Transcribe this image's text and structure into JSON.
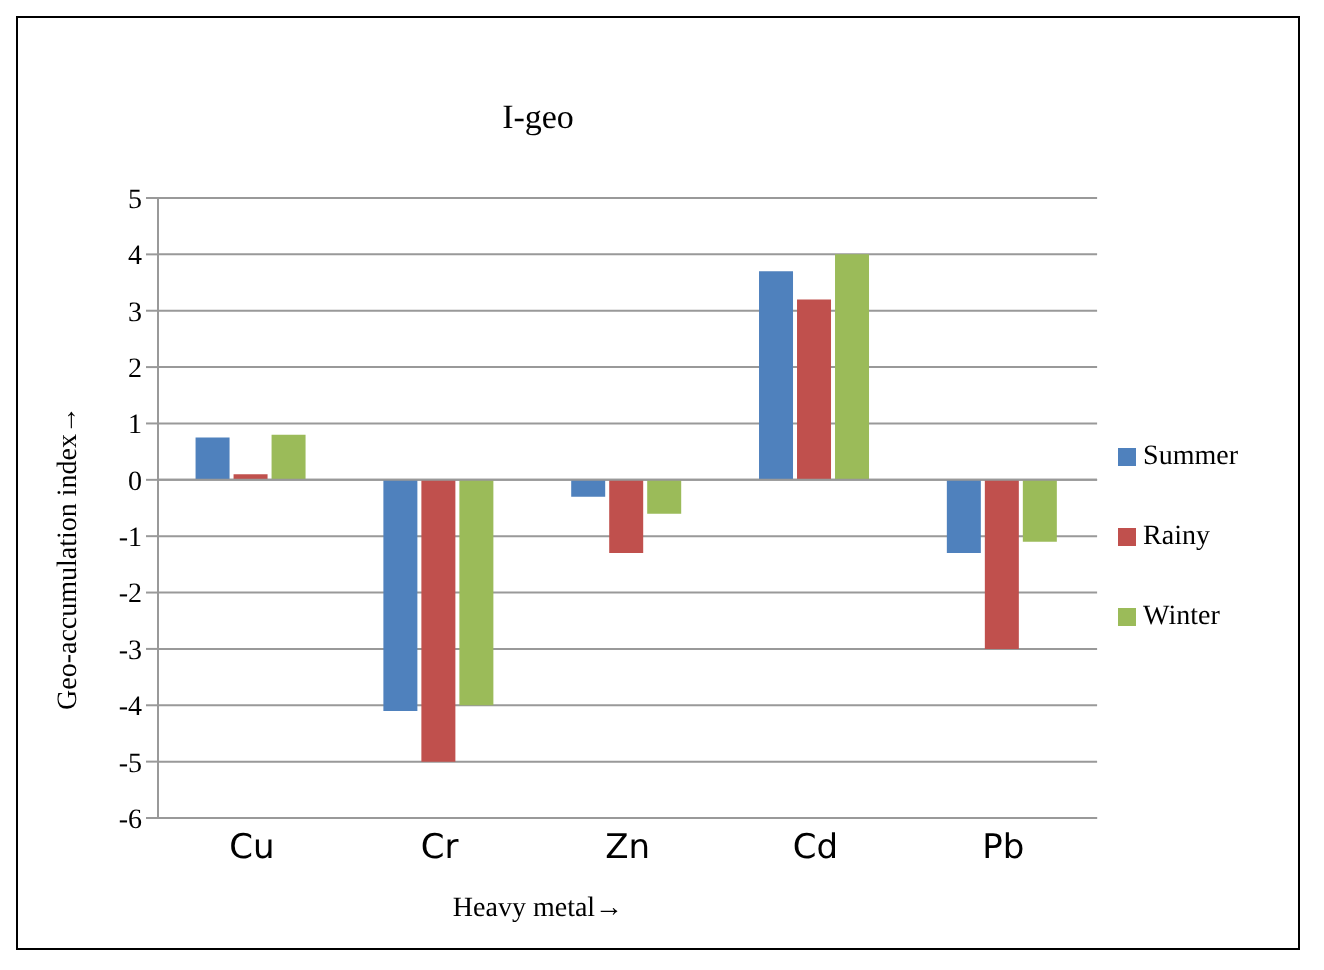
{
  "chart_data": {
    "type": "bar",
    "title": "I-geo",
    "xlabel": "Heavy metal→",
    "ylabel": "Geo-accumulation index→",
    "categories": [
      "Cu",
      "Cr",
      "Zn",
      "Cd",
      "Pb"
    ],
    "series": [
      {
        "name": "Summer",
        "color": "#4f81bd",
        "values": [
          0.75,
          -4.1,
          -0.3,
          3.7,
          -1.3
        ]
      },
      {
        "name": "Rainy",
        "color": "#c0504d",
        "values": [
          0.1,
          -5.0,
          -1.3,
          3.2,
          -3.0
        ]
      },
      {
        "name": "Winter",
        "color": "#9bbb59",
        "values": [
          0.8,
          -4.0,
          -0.6,
          4.0,
          -1.1
        ]
      }
    ],
    "ylim": [
      -6,
      5
    ],
    "yticks": [
      -6,
      -5,
      -4,
      -3,
      -2,
      -1,
      0,
      1,
      2,
      3,
      4,
      5
    ],
    "grid": "y",
    "legend": "right"
  }
}
